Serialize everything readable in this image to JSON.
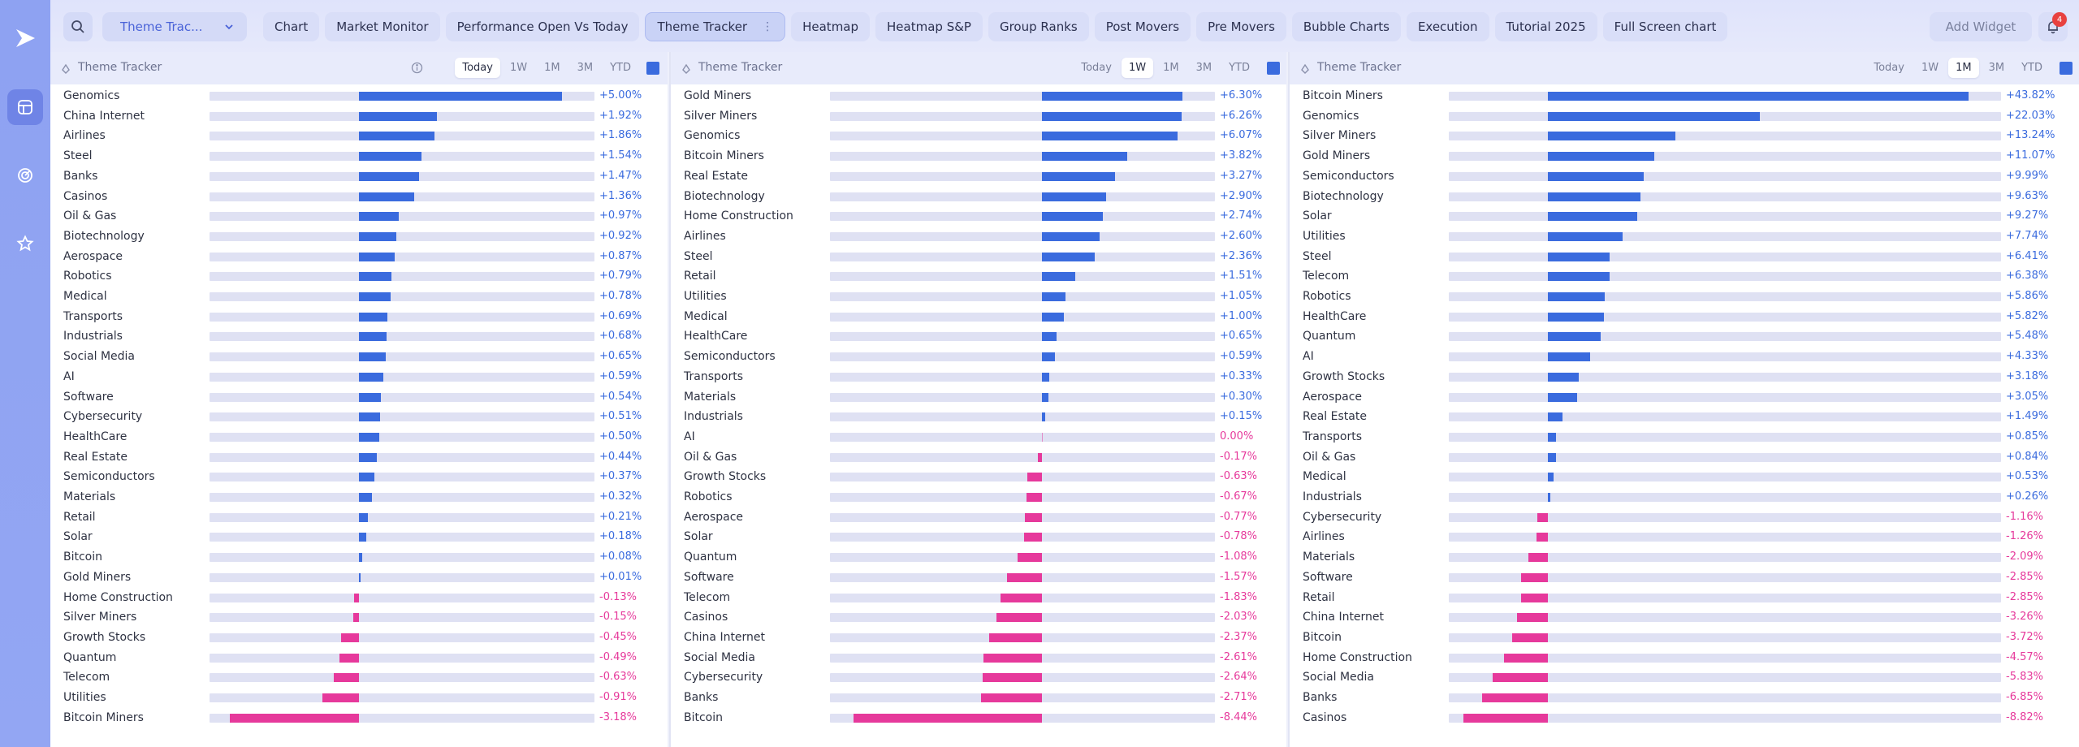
{
  "topbar": {
    "select_label": "Theme Trac...",
    "tabs": [
      "Chart",
      "Market Monitor",
      "Performance Open Vs Today",
      "Theme Tracker",
      "Heatmap",
      "Heatmap S&P",
      "Group Ranks",
      "Post Movers",
      "Pre Movers",
      "Bubble Charts",
      "Execution",
      "Tutorial 2025",
      "Full Screen chart"
    ],
    "active_tab": "Theme Tracker",
    "add_widget_label": "Add Widget",
    "notification_count": "4"
  },
  "colors": {
    "positive": "#3a6bde",
    "negative": "#e6399b",
    "accent": "#4a63d8"
  },
  "panels": [
    {
      "title": "Theme Tracker",
      "ranges": [
        "Today",
        "1W",
        "1M",
        "3M",
        "YTD"
      ],
      "active_range": "Today",
      "rows": [
        {
          "name": "Genomics",
          "value": 5.0,
          "label": "+5.00%"
        },
        {
          "name": "China Internet",
          "value": 1.92,
          "label": "+1.92%"
        },
        {
          "name": "Airlines",
          "value": 1.86,
          "label": "+1.86%"
        },
        {
          "name": "Steel",
          "value": 1.54,
          "label": "+1.54%"
        },
        {
          "name": "Banks",
          "value": 1.47,
          "label": "+1.47%"
        },
        {
          "name": "Casinos",
          "value": 1.36,
          "label": "+1.36%"
        },
        {
          "name": "Oil & Gas",
          "value": 0.97,
          "label": "+0.97%"
        },
        {
          "name": "Biotechnology",
          "value": 0.92,
          "label": "+0.92%"
        },
        {
          "name": "Aerospace",
          "value": 0.87,
          "label": "+0.87%"
        },
        {
          "name": "Robotics",
          "value": 0.79,
          "label": "+0.79%"
        },
        {
          "name": "Medical",
          "value": 0.78,
          "label": "+0.78%"
        },
        {
          "name": "Transports",
          "value": 0.69,
          "label": "+0.69%"
        },
        {
          "name": "Industrials",
          "value": 0.68,
          "label": "+0.68%"
        },
        {
          "name": "Social Media",
          "value": 0.65,
          "label": "+0.65%"
        },
        {
          "name": "AI",
          "value": 0.59,
          "label": "+0.59%"
        },
        {
          "name": "Software",
          "value": 0.54,
          "label": "+0.54%"
        },
        {
          "name": "Cybersecurity",
          "value": 0.51,
          "label": "+0.51%"
        },
        {
          "name": "HealthCare",
          "value": 0.5,
          "label": "+0.50%"
        },
        {
          "name": "Real Estate",
          "value": 0.44,
          "label": "+0.44%"
        },
        {
          "name": "Semiconductors",
          "value": 0.37,
          "label": "+0.37%"
        },
        {
          "name": "Materials",
          "value": 0.32,
          "label": "+0.32%"
        },
        {
          "name": "Retail",
          "value": 0.21,
          "label": "+0.21%"
        },
        {
          "name": "Solar",
          "value": 0.18,
          "label": "+0.18%"
        },
        {
          "name": "Bitcoin",
          "value": 0.08,
          "label": "+0.08%"
        },
        {
          "name": "Gold Miners",
          "value": 0.01,
          "label": "+0.01%"
        },
        {
          "name": "Home Construction",
          "value": -0.13,
          "label": "-0.13%"
        },
        {
          "name": "Silver Miners",
          "value": -0.15,
          "label": "-0.15%"
        },
        {
          "name": "Growth Stocks",
          "value": -0.45,
          "label": "-0.45%"
        },
        {
          "name": "Quantum",
          "value": -0.49,
          "label": "-0.49%"
        },
        {
          "name": "Telecom",
          "value": -0.63,
          "label": "-0.63%"
        },
        {
          "name": "Utilities",
          "value": -0.91,
          "label": "-0.91%"
        },
        {
          "name": "Bitcoin Miners",
          "value": -3.18,
          "label": "-3.18%"
        }
      ]
    },
    {
      "title": "Theme Tracker",
      "ranges": [
        "Today",
        "1W",
        "1M",
        "3M",
        "YTD"
      ],
      "active_range": "1W",
      "rows": [
        {
          "name": "Gold Miners",
          "value": 6.3,
          "label": "+6.30%"
        },
        {
          "name": "Silver Miners",
          "value": 6.26,
          "label": "+6.26%"
        },
        {
          "name": "Genomics",
          "value": 6.07,
          "label": "+6.07%"
        },
        {
          "name": "Bitcoin Miners",
          "value": 3.82,
          "label": "+3.82%"
        },
        {
          "name": "Real Estate",
          "value": 3.27,
          "label": "+3.27%"
        },
        {
          "name": "Biotechnology",
          "value": 2.9,
          "label": "+2.90%"
        },
        {
          "name": "Home Construction",
          "value": 2.74,
          "label": "+2.74%"
        },
        {
          "name": "Airlines",
          "value": 2.6,
          "label": "+2.60%"
        },
        {
          "name": "Steel",
          "value": 2.36,
          "label": "+2.36%"
        },
        {
          "name": "Retail",
          "value": 1.51,
          "label": "+1.51%"
        },
        {
          "name": "Utilities",
          "value": 1.05,
          "label": "+1.05%"
        },
        {
          "name": "Medical",
          "value": 1.0,
          "label": "+1.00%"
        },
        {
          "name": "HealthCare",
          "value": 0.65,
          "label": "+0.65%"
        },
        {
          "name": "Semiconductors",
          "value": 0.59,
          "label": "+0.59%"
        },
        {
          "name": "Transports",
          "value": 0.33,
          "label": "+0.33%"
        },
        {
          "name": "Materials",
          "value": 0.3,
          "label": "+0.30%"
        },
        {
          "name": "Industrials",
          "value": 0.15,
          "label": "+0.15%"
        },
        {
          "name": "AI",
          "value": 0.0,
          "label": "0.00%"
        },
        {
          "name": "Oil & Gas",
          "value": -0.17,
          "label": "-0.17%"
        },
        {
          "name": "Growth Stocks",
          "value": -0.63,
          "label": "-0.63%"
        },
        {
          "name": "Robotics",
          "value": -0.67,
          "label": "-0.67%"
        },
        {
          "name": "Aerospace",
          "value": -0.77,
          "label": "-0.77%"
        },
        {
          "name": "Solar",
          "value": -0.78,
          "label": "-0.78%"
        },
        {
          "name": "Quantum",
          "value": -1.08,
          "label": "-1.08%"
        },
        {
          "name": "Software",
          "value": -1.57,
          "label": "-1.57%"
        },
        {
          "name": "Telecom",
          "value": -1.83,
          "label": "-1.83%"
        },
        {
          "name": "Casinos",
          "value": -2.03,
          "label": "-2.03%"
        },
        {
          "name": "China Internet",
          "value": -2.37,
          "label": "-2.37%"
        },
        {
          "name": "Social Media",
          "value": -2.61,
          "label": "-2.61%"
        },
        {
          "name": "Cybersecurity",
          "value": -2.64,
          "label": "-2.64%"
        },
        {
          "name": "Banks",
          "value": -2.71,
          "label": "-2.71%"
        },
        {
          "name": "Bitcoin",
          "value": -8.44,
          "label": "-8.44%"
        }
      ]
    },
    {
      "title": "Theme Tracker",
      "ranges": [
        "Today",
        "1W",
        "1M",
        "3M",
        "YTD"
      ],
      "active_range": "1M",
      "rows": [
        {
          "name": "Bitcoin Miners",
          "value": 43.82,
          "label": "+43.82%"
        },
        {
          "name": "Genomics",
          "value": 22.03,
          "label": "+22.03%"
        },
        {
          "name": "Silver Miners",
          "value": 13.24,
          "label": "+13.24%"
        },
        {
          "name": "Gold Miners",
          "value": 11.07,
          "label": "+11.07%"
        },
        {
          "name": "Semiconductors",
          "value": 9.99,
          "label": "+9.99%"
        },
        {
          "name": "Biotechnology",
          "value": 9.63,
          "label": "+9.63%"
        },
        {
          "name": "Solar",
          "value": 9.27,
          "label": "+9.27%"
        },
        {
          "name": "Utilities",
          "value": 7.74,
          "label": "+7.74%"
        },
        {
          "name": "Steel",
          "value": 6.41,
          "label": "+6.41%"
        },
        {
          "name": "Telecom",
          "value": 6.38,
          "label": "+6.38%"
        },
        {
          "name": "Robotics",
          "value": 5.86,
          "label": "+5.86%"
        },
        {
          "name": "HealthCare",
          "value": 5.82,
          "label": "+5.82%"
        },
        {
          "name": "Quantum",
          "value": 5.48,
          "label": "+5.48%"
        },
        {
          "name": "AI",
          "value": 4.33,
          "label": "+4.33%"
        },
        {
          "name": "Growth Stocks",
          "value": 3.18,
          "label": "+3.18%"
        },
        {
          "name": "Aerospace",
          "value": 3.05,
          "label": "+3.05%"
        },
        {
          "name": "Real Estate",
          "value": 1.49,
          "label": "+1.49%"
        },
        {
          "name": "Transports",
          "value": 0.85,
          "label": "+0.85%"
        },
        {
          "name": "Oil & Gas",
          "value": 0.84,
          "label": "+0.84%"
        },
        {
          "name": "Medical",
          "value": 0.53,
          "label": "+0.53%"
        },
        {
          "name": "Industrials",
          "value": 0.26,
          "label": "+0.26%"
        },
        {
          "name": "Cybersecurity",
          "value": -1.16,
          "label": "-1.16%"
        },
        {
          "name": "Airlines",
          "value": -1.26,
          "label": "-1.26%"
        },
        {
          "name": "Materials",
          "value": -2.09,
          "label": "-2.09%"
        },
        {
          "name": "Software",
          "value": -2.85,
          "label": "-2.85%"
        },
        {
          "name": "Retail",
          "value": -2.85,
          "label": "-2.85%"
        },
        {
          "name": "China Internet",
          "value": -3.26,
          "label": "-3.26%"
        },
        {
          "name": "Bitcoin",
          "value": -3.72,
          "label": "-3.72%"
        },
        {
          "name": "Home Construction",
          "value": -4.57,
          "label": "-4.57%"
        },
        {
          "name": "Social Media",
          "value": -5.83,
          "label": "-5.83%"
        },
        {
          "name": "Banks",
          "value": -6.85,
          "label": "-6.85%"
        },
        {
          "name": "Casinos",
          "value": -8.82,
          "label": "-8.82%"
        }
      ]
    }
  ]
}
